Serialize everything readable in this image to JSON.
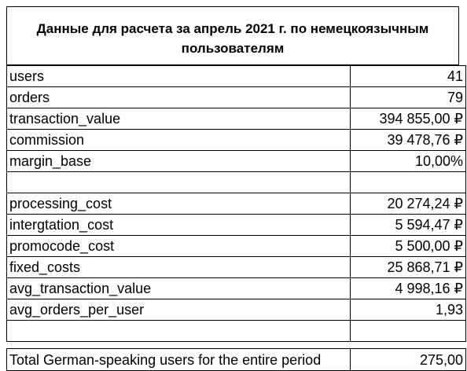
{
  "title": "Данные для расчета за апрель 2021 г. по немецкоязычным пользователям",
  "rows": [
    {
      "label": "users",
      "value": "41"
    },
    {
      "label": "orders",
      "value": "79"
    },
    {
      "label": "transaction_value",
      "value": "394 855,00 ₽"
    },
    {
      "label": "commission",
      "value": "39 478,76 ₽"
    },
    {
      "label": "margin_base",
      "value": "10,00%"
    },
    {
      "label": "",
      "value": ""
    },
    {
      "label": "processing_cost",
      "value": "20 274,24 ₽"
    },
    {
      "label": "intergtation_cost",
      "value": "5 594,47 ₽"
    },
    {
      "label": "promocode_cost",
      "value": "5 500,00 ₽"
    },
    {
      "label": "fixed_costs",
      "value": "25 868,71 ₽"
    },
    {
      "label": "avg_transaction_value",
      "value": "4 998,16 ₽"
    },
    {
      "label": "avg_orders_per_user",
      "value": "1,93"
    },
    {
      "label": "",
      "value": ""
    }
  ],
  "total": {
    "label": "Total German-speaking users for the entire period",
    "value": "275,00"
  }
}
